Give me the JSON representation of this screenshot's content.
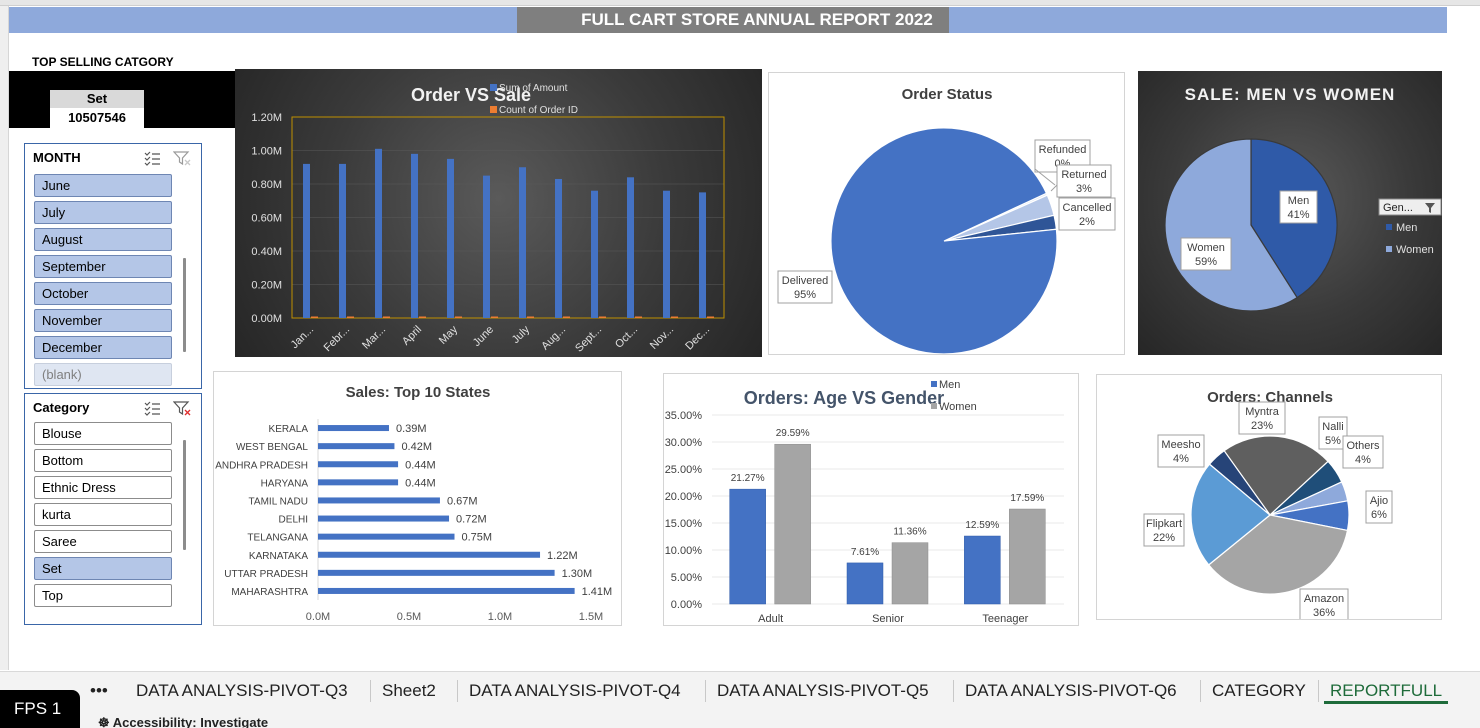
{
  "report": {
    "title": "FULL CART STORE ANNUAL REPORT 2022"
  },
  "top_selling": {
    "label": "TOP SELLING CATGORY",
    "card_header": "Set",
    "card_value": "10507546"
  },
  "month_slicer": {
    "title": "MONTH",
    "items": [
      {
        "label": "June",
        "state": "sel"
      },
      {
        "label": "July",
        "state": "sel"
      },
      {
        "label": "August",
        "state": "sel"
      },
      {
        "label": "September",
        "state": "sel"
      },
      {
        "label": "October",
        "state": "sel"
      },
      {
        "label": "November",
        "state": "sel"
      },
      {
        "label": "December",
        "state": "sel"
      },
      {
        "label": "(blank)",
        "state": "dim"
      }
    ]
  },
  "category_slicer": {
    "title": "Category",
    "items": [
      {
        "label": "Blouse",
        "state": ""
      },
      {
        "label": "Bottom",
        "state": ""
      },
      {
        "label": "Ethnic Dress",
        "state": ""
      },
      {
        "label": "kurta",
        "state": ""
      },
      {
        "label": "Saree",
        "state": ""
      },
      {
        "label": "Set",
        "state": "sel"
      },
      {
        "label": "Top",
        "state": ""
      }
    ]
  },
  "charts": {
    "order_vs_sale": {
      "title": "Order VS Sale",
      "legend": [
        "Sum of Amount",
        "Count of Order ID"
      ],
      "y_ticks": [
        "0.00M",
        "0.20M",
        "0.40M",
        "0.60M",
        "0.80M",
        "1.00M",
        "1.20M"
      ],
      "colors": {
        "amount": "#4472c4",
        "count": "#ed7d31"
      }
    },
    "order_status": {
      "title": "Order Status"
    },
    "men_women": {
      "title": "SALE: MEN VS WOMEN",
      "legend_title": "Gen...",
      "legend": [
        "Men",
        "Women"
      ]
    },
    "top_states": {
      "title": "Sales: Top 10 States",
      "x_ticks": [
        "0.0M",
        "0.5M",
        "1.0M",
        "1.5M"
      ]
    },
    "age_gender": {
      "title": "Orders: Age VS Gender",
      "legend": [
        "Men",
        "Women"
      ],
      "y_ticks": [
        "0.00%",
        "5.00%",
        "10.00%",
        "15.00%",
        "20.00%",
        "25.00%",
        "30.00%",
        "35.00%"
      ]
    },
    "channels": {
      "title": "Orders: Channels"
    }
  },
  "chart_data": [
    {
      "type": "bar",
      "title": "Order VS Sale",
      "categories": [
        "Jan...",
        "Febr...",
        "Mar...",
        "April",
        "May",
        "June",
        "July",
        "Aug...",
        "Sept...",
        "Oct...",
        "Nov...",
        "Dec..."
      ],
      "series": [
        {
          "name": "Sum of Amount",
          "values": [
            0.92,
            0.92,
            1.01,
            0.98,
            0.95,
            0.85,
            0.9,
            0.83,
            0.76,
            0.84,
            0.76,
            0.75
          ]
        },
        {
          "name": "Count of Order ID",
          "values": [
            0.005,
            0.005,
            0.005,
            0.005,
            0.005,
            0.005,
            0.005,
            0.005,
            0.005,
            0.005,
            0.005,
            0.005
          ]
        }
      ],
      "ylim": [
        0,
        1.2
      ],
      "yunit": "M",
      "grid": true,
      "legend": "top"
    },
    {
      "type": "pie",
      "title": "Order Status",
      "labels": [
        "Delivered",
        "Refunded",
        "Returned",
        "Cancelled"
      ],
      "values": [
        95,
        0.3,
        3,
        2
      ],
      "display": [
        "95%",
        "0%",
        "3%",
        "2%"
      ],
      "colors": [
        "#4472c4",
        "#dce4f2",
        "#b4c6e7",
        "#2f5597"
      ]
    },
    {
      "type": "pie",
      "title": "SALE: MEN VS WOMEN",
      "labels": [
        "Men",
        "Women"
      ],
      "values": [
        41,
        59
      ],
      "display": [
        "41%",
        "59%"
      ],
      "colors": [
        "#2f5aa8",
        "#8ea9db"
      ],
      "legend": "right"
    },
    {
      "type": "bar",
      "title": "Sales: Top 10 States",
      "orientation": "horizontal",
      "categories": [
        "KERALA",
        "WEST BENGAL",
        "ANDHRA PRADESH",
        "HARYANA",
        "TAMIL NADU",
        "DELHI",
        "TELANGANA",
        "KARNATAKA",
        "UTTAR PRADESH",
        "MAHARASHTRA"
      ],
      "values": [
        0.39,
        0.42,
        0.44,
        0.44,
        0.67,
        0.72,
        0.75,
        1.22,
        1.3,
        1.41
      ],
      "labels": [
        "0.39M",
        "0.42M",
        "0.44M",
        "0.44M",
        "0.67M",
        "0.72M",
        "0.75M",
        "1.22M",
        "1.30M",
        "1.41M"
      ],
      "xlim": [
        0,
        1.5
      ]
    },
    {
      "type": "bar",
      "title": "Orders: Age VS Gender",
      "categories": [
        "Adult",
        "Senior",
        "Teenager"
      ],
      "series": [
        {
          "name": "Men",
          "values": [
            21.27,
            7.61,
            12.59
          ],
          "labels": [
            "21.27%",
            "7.61%",
            "12.59%"
          ]
        },
        {
          "name": "Women",
          "values": [
            29.59,
            11.36,
            17.59
          ],
          "labels": [
            "29.59%",
            "11.36%",
            "17.59%"
          ]
        }
      ],
      "ylim": [
        0,
        35
      ],
      "grid": true,
      "legend": "top"
    },
    {
      "type": "pie",
      "title": "Orders: Channels",
      "labels": [
        "Myntra",
        "Nalli",
        "Others",
        "Ajio",
        "Amazon",
        "Flipkart",
        "Meesho"
      ],
      "values": [
        23,
        5,
        4,
        6,
        36,
        22,
        4
      ],
      "display": [
        "23%",
        "5%",
        "4%",
        "6%",
        "36%",
        "22%",
        "4%"
      ],
      "colors": [
        "#5f5f5f",
        "#1f4e79",
        "#8ea9db",
        "#4472c4",
        "#a5a5a5",
        "#5b9bd5",
        "#264478"
      ]
    }
  ],
  "tabs": {
    "items": [
      "DATA ANALYSIS-PIVOT-Q3",
      "Sheet2",
      "DATA ANALYSIS-PIVOT-Q4",
      "DATA ANALYSIS-PIVOT-Q5",
      "DATA ANALYSIS-PIVOT-Q6",
      "CATEGORY",
      "REPORTFULL"
    ],
    "more": "•••",
    "active": "REPORTFULL"
  },
  "status": {
    "fps": "FPS 1",
    "accessibility": "Accessibility: Investigate"
  }
}
